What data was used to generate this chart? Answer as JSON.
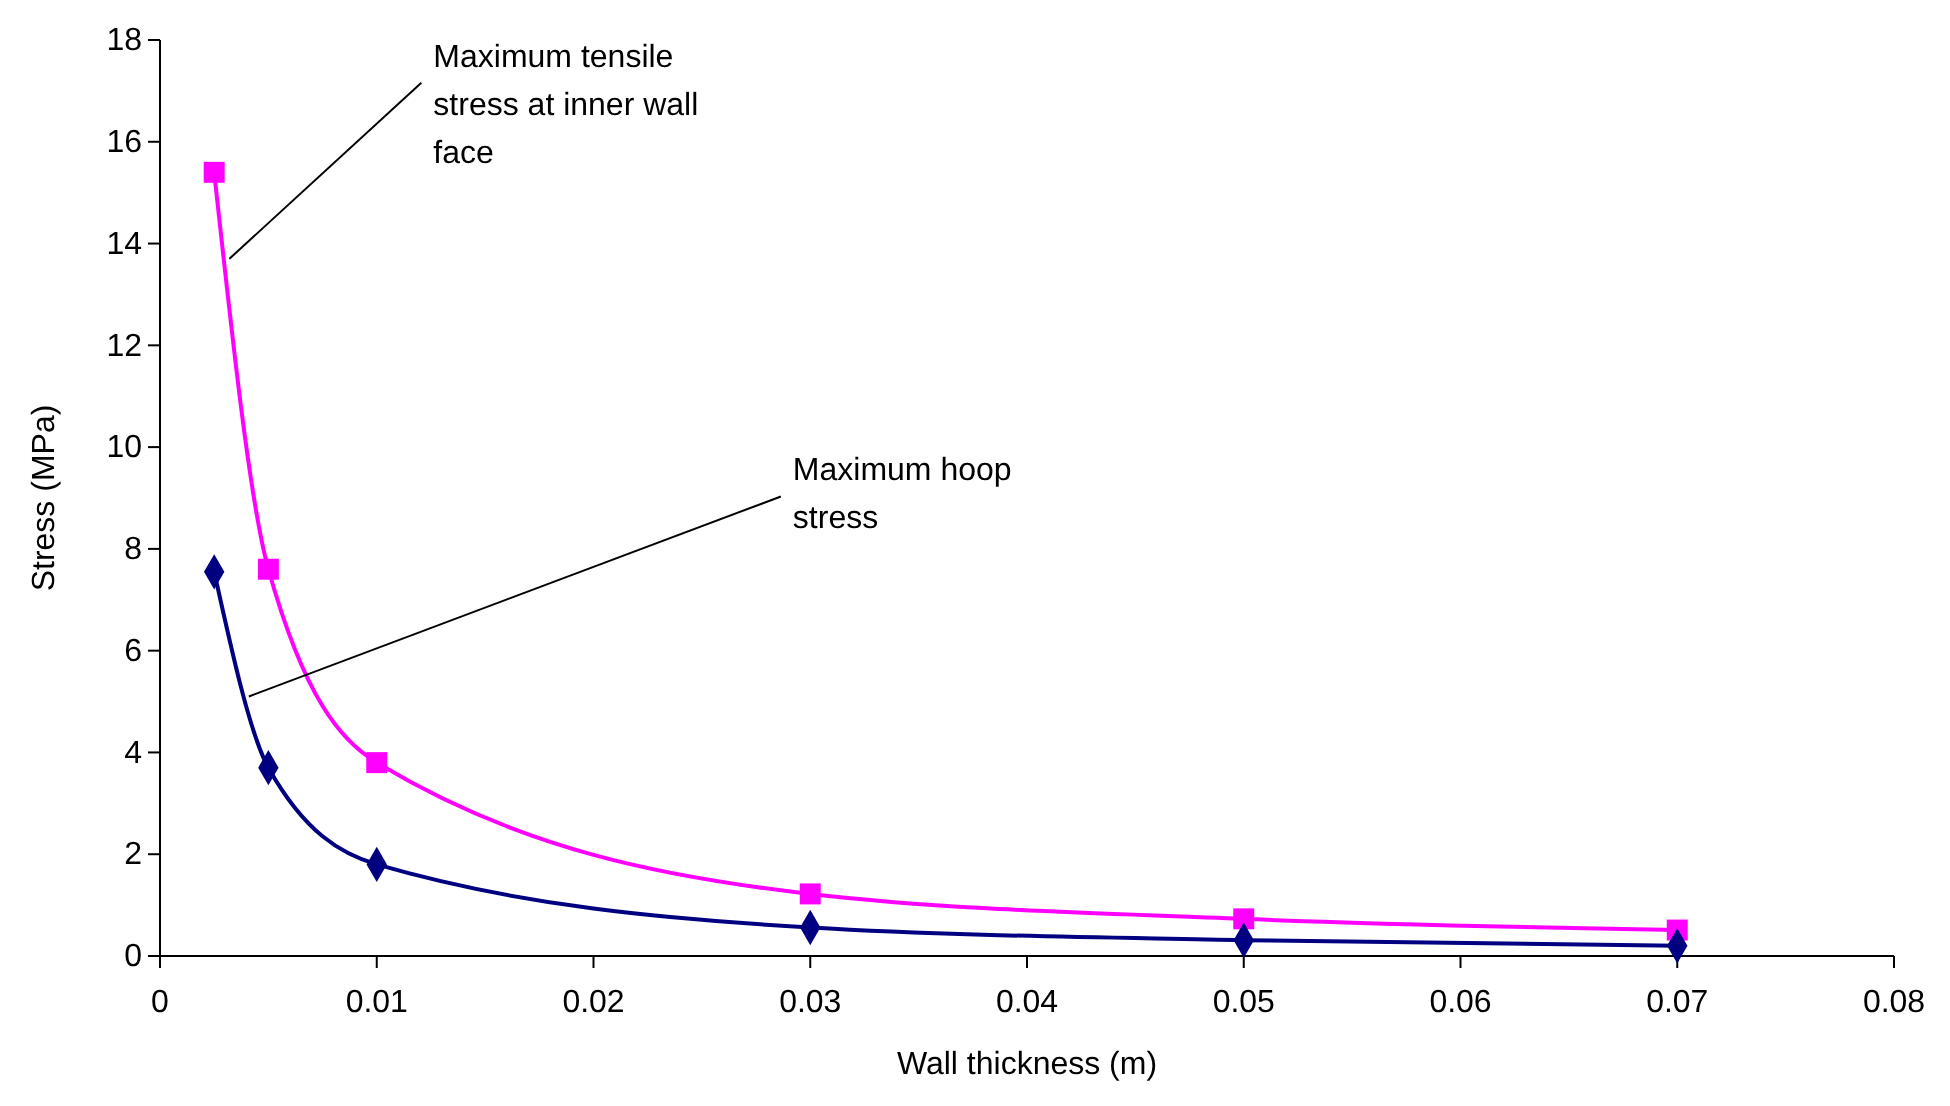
{
  "chart_data": {
    "type": "line",
    "xlabel": "Wall thickness (m)",
    "ylabel": "Stress (MPa)",
    "x": [
      0.0025,
      0.005,
      0.01,
      0.03,
      0.05,
      0.07
    ],
    "series": [
      {
        "color": "#ff00ff",
        "marker": "square",
        "values": [
          15.4,
          7.6,
          3.8,
          1.22,
          0.73,
          0.51
        ]
      },
      {
        "color": "#000080",
        "marker": "diamond",
        "values": [
          7.55,
          3.7,
          1.8,
          0.56,
          0.31,
          0.2
        ]
      }
    ],
    "annotations": [
      {
        "text": "Maximum tensile stress at inner wall face",
        "x": 0.0032,
        "y": 13.7
      },
      {
        "text": "Maximum hoop stress",
        "x": 0.0041,
        "y": 5.1
      }
    ],
    "xlim": [
      0,
      0.08
    ],
    "xticks": [
      0,
      0.01,
      0.02,
      0.03,
      0.04,
      0.05,
      0.06,
      0.07,
      0.08
    ],
    "ylim": [
      0,
      18
    ],
    "yticks": [
      0,
      2,
      4,
      6,
      8,
      10,
      12,
      14,
      16,
      18
    ],
    "grid": false,
    "line_style": "solid"
  }
}
